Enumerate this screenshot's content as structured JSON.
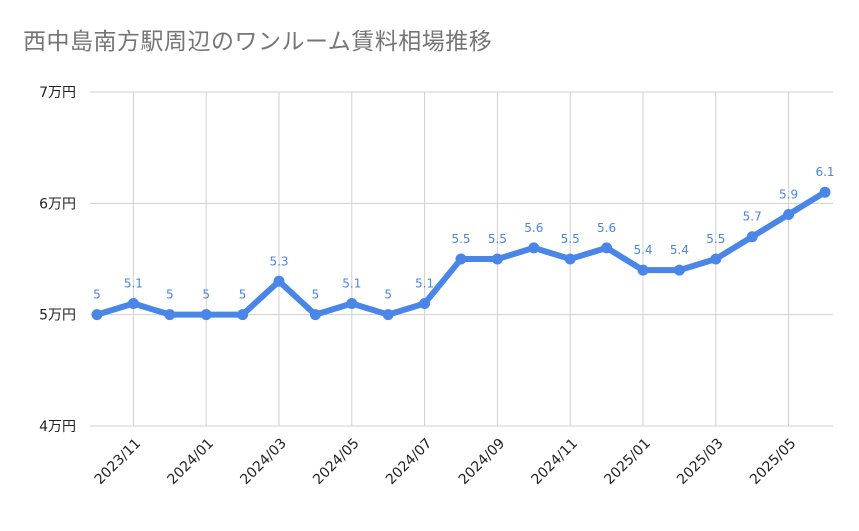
{
  "chart_data": {
    "type": "line",
    "title": "西中島南方駅周辺のワンルーム賃料相場推移",
    "xlabel": "",
    "ylabel": "",
    "x": [
      "2023/10",
      "2023/11",
      "2023/12",
      "2024/01",
      "2024/02",
      "2024/03",
      "2024/04",
      "2024/05",
      "2024/06",
      "2024/07",
      "2024/08",
      "2024/09",
      "2024/10",
      "2024/11",
      "2024/12",
      "2025/01",
      "2025/02",
      "2025/03",
      "2025/04",
      "2025/05",
      "2025/06"
    ],
    "x_tick_labels": [
      "2023/11",
      "2024/01",
      "2024/03",
      "2024/05",
      "2024/07",
      "2024/09",
      "2024/11",
      "2025/01",
      "2025/03",
      "2025/05"
    ],
    "series": [
      {
        "values": [
          5,
          5.1,
          5,
          5,
          5,
          5.3,
          5,
          5.1,
          5,
          5.1,
          5.5,
          5.5,
          5.6,
          5.5,
          5.6,
          5.4,
          5.4,
          5.5,
          5.7,
          5.9,
          6.1
        ],
        "value_labels": [
          "5",
          "5.1",
          "5",
          "5",
          "5",
          "5.3",
          "5",
          "5.1",
          "5",
          "5.1",
          "5.5",
          "5.5",
          "5.6",
          "5.5",
          "5.6",
          "5.4",
          "5.4",
          "5.5",
          "5.7",
          "5.9",
          "6.1"
        ],
        "color": "#4a86e8"
      }
    ],
    "ylim": [
      4,
      7
    ],
    "y_ticks": [
      {
        "value": 4,
        "label": "4万円"
      },
      {
        "value": 5,
        "label": "5万円"
      },
      {
        "value": 6,
        "label": "6万円"
      },
      {
        "value": 7,
        "label": "7万円"
      }
    ],
    "grid": true,
    "legend": "none"
  }
}
